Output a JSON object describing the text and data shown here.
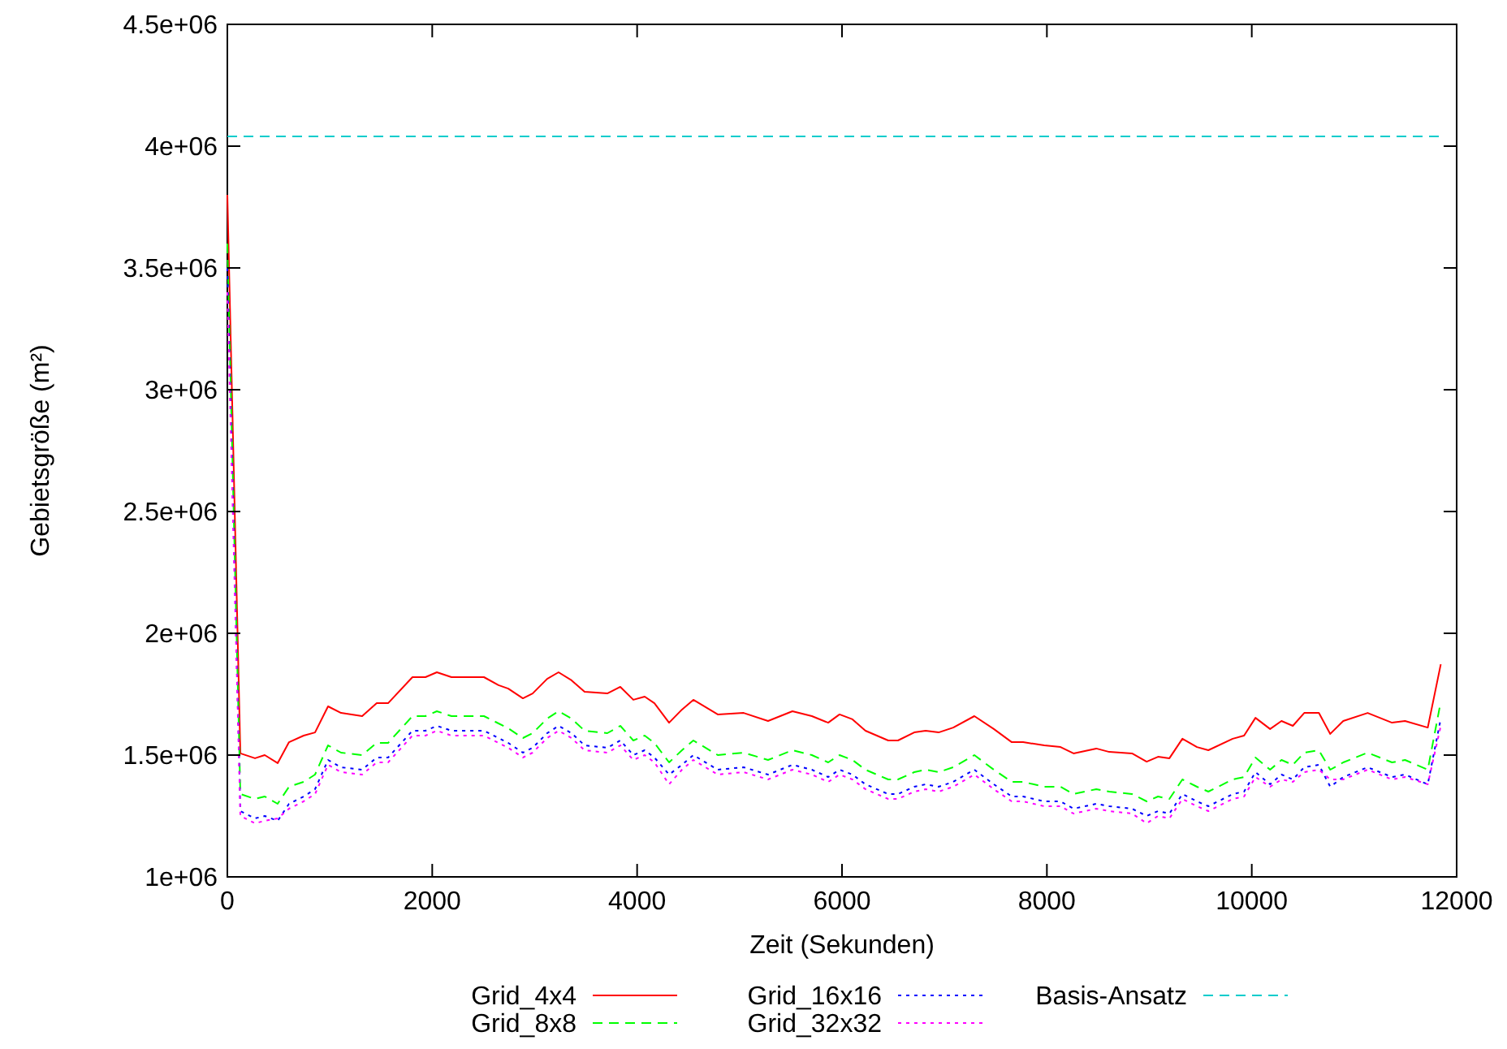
{
  "chart_data": {
    "type": "line",
    "xlabel": "Zeit (Sekunden)",
    "ylabel": "Gebietsgröße (m²)",
    "xlim": [
      0,
      12000
    ],
    "xticks": [
      0,
      2000,
      4000,
      6000,
      8000,
      10000,
      12000
    ],
    "ylim": [
      1000000,
      4500000
    ],
    "yticks": [
      {
        "value": 1000000,
        "label": "1e+06"
      },
      {
        "value": 1500000,
        "label": "1.5e+06"
      },
      {
        "value": 2000000,
        "label": "2e+06"
      },
      {
        "value": 2500000,
        "label": "2.5e+06"
      },
      {
        "value": 3000000,
        "label": "3e+06"
      },
      {
        "value": 3500000,
        "label": "3.5e+06"
      },
      {
        "value": 4000000,
        "label": "4e+06"
      },
      {
        "value": 4500000,
        "label": "4.5e+06"
      }
    ],
    "grid": false,
    "legend": "bottom",
    "marker": "none",
    "x": [
      0,
      127,
      270,
      365,
      491,
      602,
      745,
      856,
      983,
      1110,
      1316,
      1458,
      1569,
      1807,
      1934,
      2045,
      2188,
      2505,
      2647,
      2742,
      2885,
      2980,
      3122,
      3233,
      3360,
      3487,
      3709,
      3836,
      3963,
      4074,
      4169,
      4312,
      4438,
      4549,
      4787,
      5040,
      5278,
      5516,
      5706,
      5865,
      5976,
      6102,
      6229,
      6451,
      6546,
      6705,
      6816,
      6943,
      7086,
      7292,
      7482,
      7657,
      7768,
      7974,
      8133,
      8260,
      8482,
      8609,
      8831,
      8974,
      9085,
      9196,
      9323,
      9465,
      9576,
      9814,
      9925,
      10036,
      10179,
      10290,
      10401,
      10512,
      10655,
      10766,
      10893,
      11131,
      11369,
      11496,
      11718,
      11845
    ],
    "series": [
      {
        "name": "Grid_4x4",
        "color": "#ff0000",
        "line_style": "solid",
        "values": [
          3800000,
          1507000,
          1487000,
          1500000,
          1467000,
          1553000,
          1580000,
          1593000,
          1700000,
          1673000,
          1660000,
          1713000,
          1713000,
          1820000,
          1820000,
          1840000,
          1820000,
          1820000,
          1787000,
          1773000,
          1733000,
          1753000,
          1813000,
          1840000,
          1807000,
          1760000,
          1753000,
          1780000,
          1727000,
          1740000,
          1713000,
          1633000,
          1687000,
          1727000,
          1667000,
          1673000,
          1640000,
          1680000,
          1660000,
          1633000,
          1667000,
          1647000,
          1600000,
          1560000,
          1560000,
          1593000,
          1600000,
          1593000,
          1613000,
          1660000,
          1607000,
          1553000,
          1553000,
          1540000,
          1533000,
          1507000,
          1527000,
          1513000,
          1507000,
          1473000,
          1493000,
          1487000,
          1567000,
          1533000,
          1520000,
          1567000,
          1580000,
          1653000,
          1607000,
          1640000,
          1620000,
          1673000,
          1673000,
          1587000,
          1640000,
          1673000,
          1633000,
          1640000,
          1613000,
          1873000
        ]
      },
      {
        "name": "Grid_8x8",
        "color": "#00ff00",
        "line_style": "dashed",
        "values": [
          3600000,
          1340000,
          1320000,
          1330000,
          1300000,
          1370000,
          1390000,
          1420000,
          1540000,
          1510000,
          1500000,
          1550000,
          1550000,
          1660000,
          1660000,
          1680000,
          1660000,
          1660000,
          1630000,
          1610000,
          1570000,
          1590000,
          1650000,
          1680000,
          1650000,
          1600000,
          1590000,
          1620000,
          1560000,
          1580000,
          1550000,
          1470000,
          1520000,
          1560000,
          1500000,
          1510000,
          1480000,
          1520000,
          1500000,
          1470000,
          1500000,
          1480000,
          1440000,
          1400000,
          1400000,
          1430000,
          1440000,
          1430000,
          1450000,
          1500000,
          1440000,
          1390000,
          1390000,
          1370000,
          1370000,
          1340000,
          1360000,
          1350000,
          1340000,
          1310000,
          1330000,
          1320000,
          1400000,
          1370000,
          1350000,
          1400000,
          1410000,
          1490000,
          1440000,
          1480000,
          1460000,
          1510000,
          1520000,
          1440000,
          1470000,
          1510000,
          1470000,
          1480000,
          1440000,
          1720000
        ]
      },
      {
        "name": "Grid_16x16",
        "color": "#0000ff",
        "line_style": "dotted",
        "values": [
          3500000,
          1270000,
          1240000,
          1250000,
          1230000,
          1300000,
          1330000,
          1360000,
          1480000,
          1450000,
          1440000,
          1490000,
          1490000,
          1600000,
          1600000,
          1620000,
          1600000,
          1600000,
          1570000,
          1550000,
          1510000,
          1530000,
          1590000,
          1620000,
          1590000,
          1540000,
          1530000,
          1560000,
          1500000,
          1520000,
          1490000,
          1420000,
          1460000,
          1500000,
          1440000,
          1450000,
          1420000,
          1460000,
          1440000,
          1410000,
          1440000,
          1420000,
          1380000,
          1340000,
          1340000,
          1370000,
          1380000,
          1370000,
          1390000,
          1440000,
          1380000,
          1330000,
          1330000,
          1310000,
          1310000,
          1280000,
          1300000,
          1290000,
          1280000,
          1250000,
          1270000,
          1260000,
          1340000,
          1310000,
          1290000,
          1340000,
          1350000,
          1430000,
          1380000,
          1420000,
          1400000,
          1450000,
          1460000,
          1370000,
          1410000,
          1450000,
          1410000,
          1420000,
          1380000,
          1650000
        ]
      },
      {
        "name": "Grid_32x32",
        "color": "#ff00ff",
        "line_style": "dotted",
        "values": [
          3400000,
          1250000,
          1220000,
          1230000,
          1240000,
          1280000,
          1310000,
          1340000,
          1460000,
          1430000,
          1420000,
          1470000,
          1470000,
          1580000,
          1580000,
          1600000,
          1580000,
          1580000,
          1550000,
          1530000,
          1490000,
          1510000,
          1570000,
          1600000,
          1570000,
          1520000,
          1510000,
          1540000,
          1480000,
          1500000,
          1470000,
          1380000,
          1440000,
          1480000,
          1420000,
          1430000,
          1400000,
          1440000,
          1420000,
          1390000,
          1420000,
          1400000,
          1360000,
          1320000,
          1320000,
          1350000,
          1360000,
          1350000,
          1370000,
          1420000,
          1360000,
          1310000,
          1310000,
          1290000,
          1290000,
          1260000,
          1280000,
          1270000,
          1260000,
          1220000,
          1250000,
          1240000,
          1320000,
          1290000,
          1270000,
          1320000,
          1330000,
          1410000,
          1370000,
          1400000,
          1390000,
          1430000,
          1440000,
          1400000,
          1400000,
          1440000,
          1400000,
          1410000,
          1380000,
          1620000
        ]
      },
      {
        "name": "Basis-Ansatz",
        "color": "#00cccc",
        "line_style": "dashed",
        "x": [
          0,
          11845
        ],
        "values": [
          4040000,
          4040000
        ]
      }
    ]
  }
}
